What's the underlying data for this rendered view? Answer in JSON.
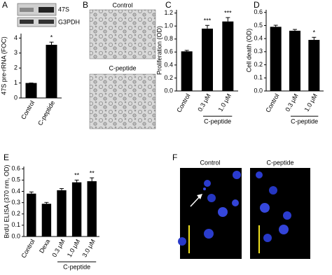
{
  "panels": [
    "A",
    "B",
    "C",
    "D",
    "E",
    "F"
  ],
  "blot_labels": [
    "47S",
    "G3PDH"
  ],
  "panel_b_labels": [
    "Control",
    "C-peptide"
  ],
  "panel_f_labels": [
    "Control",
    "C-peptide"
  ],
  "chart_data": [
    {
      "type": "bar",
      "y_label": "47S pre-rRNA (FOC)",
      "categories": [
        "Control",
        "C-peptide"
      ],
      "values": [
        1.0,
        3.55
      ],
      "errors": [
        0,
        0.18
      ],
      "annotations": [
        null,
        "*"
      ],
      "color": "#000000",
      "ylim": [
        0,
        4.3
      ],
      "yticks": [
        0,
        1,
        2,
        3,
        4
      ]
    },
    {
      "type": "bar",
      "y_label": "Proliferation (OD)",
      "categories": [
        "Control",
        "0.3 μM",
        "1.0 μM"
      ],
      "group_label": "C-peptide",
      "values": [
        0.61,
        0.96,
        1.07
      ],
      "errors": [
        0.015,
        0.05,
        0.06
      ],
      "annotations": [
        null,
        "***",
        "***"
      ],
      "color": "#000000",
      "ylim": [
        0,
        1.25
      ],
      "yticks": [
        {
          "value": 0,
          "label": "0.0"
        },
        0.2,
        0.4,
        0.6,
        0.8,
        {
          "value": 1,
          "label": "1.0"
        },
        1.2
      ]
    },
    {
      "type": "bar",
      "y_label": "Cell death (OD)",
      "categories": [
        "Control",
        "0.3 μM",
        "1.0 μM"
      ],
      "group_label": "C-peptide",
      "values": [
        0.49,
        0.46,
        0.39
      ],
      "errors": [
        0.012,
        0.01,
        0.02
      ],
      "annotations": [
        null,
        null,
        "*"
      ],
      "color": "#000000",
      "ylim": [
        0,
        0.62
      ],
      "yticks": [
        {
          "value": 0,
          "label": "0.0"
        },
        0.1,
        0.2,
        0.3,
        0.4,
        0.5,
        0.6
      ]
    },
    {
      "type": "bar",
      "y_label": "BrdU ELISA (370 nm, OD)",
      "categories": [
        "Control",
        "Dexa",
        "0.3 μM",
        "1.0 μM",
        "3.0 μM"
      ],
      "group_label": "C-peptide",
      "values": [
        0.38,
        0.29,
        0.41,
        0.48,
        0.49
      ],
      "errors": [
        0.015,
        0.012,
        0.015,
        0.02,
        0.03
      ],
      "annotations": [
        null,
        null,
        null,
        "**",
        "**"
      ],
      "color": "#000000",
      "ylim": [
        0,
        0.62
      ],
      "yticks": [
        {
          "value": 0,
          "label": "0.0"
        },
        0.1,
        0.2,
        0.3,
        0.4,
        0.5,
        0.6
      ]
    }
  ]
}
